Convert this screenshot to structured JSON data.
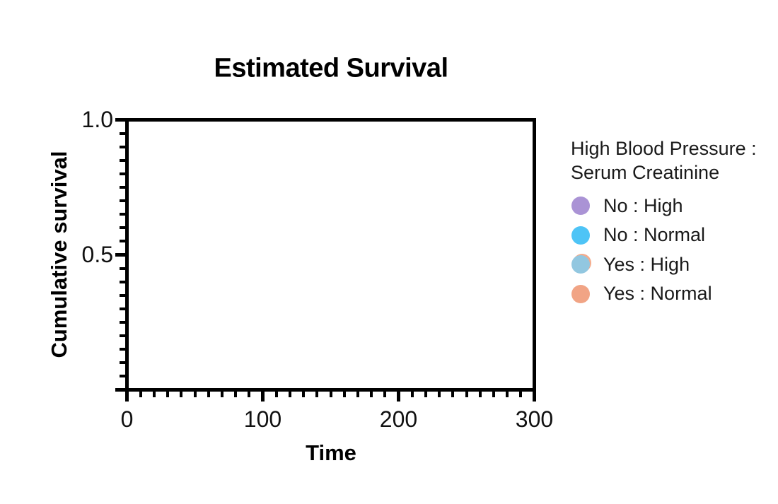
{
  "page": {
    "background_color": "#ffffff",
    "text_color": "#1a1a1a",
    "axis_color": "#000000"
  },
  "chart_data": {
    "type": "line",
    "chart_kind": "kaplan-meier-survival-curve",
    "title": "Estimated Survival",
    "xlabel": "Time",
    "ylabel": "Cumulative survival",
    "xlim": [
      0,
      300
    ],
    "ylim": [
      0,
      1
    ],
    "grid": false,
    "plot_area_empty": true,
    "x_ticks": {
      "major_values": [
        0,
        100,
        200,
        300
      ],
      "major_labels": [
        "0",
        "100",
        "200",
        "300"
      ],
      "minor_step": 10
    },
    "y_ticks": {
      "major_values": [
        0,
        0.5,
        1
      ],
      "labeled_majors": [
        {
          "value": 1,
          "label": "1.0"
        },
        {
          "value": 0.5,
          "label": "0.5"
        }
      ],
      "minor_step": 0.05
    },
    "legend": {
      "position": "right",
      "title_line1": "High Blood Pressure :",
      "title_line2": "Serum Creatinine",
      "entries": [
        {
          "label": "No : High",
          "color": "#aa93d5"
        },
        {
          "label": "No : Normal",
          "color": "#4ec4f6"
        },
        {
          "label": "Yes : High",
          "color": "#92c7e0",
          "halo": "#f4ac8c"
        },
        {
          "label": "Yes : Normal",
          "color": "#f1a485"
        }
      ]
    },
    "series": [
      {
        "name": "No : High",
        "color": "#aa93d5",
        "points": []
      },
      {
        "name": "No : Normal",
        "color": "#4ec4f6",
        "points": []
      },
      {
        "name": "Yes : High",
        "color": "#92c7e0",
        "points": []
      },
      {
        "name": "Yes : Normal",
        "color": "#f1a485",
        "points": []
      }
    ]
  }
}
